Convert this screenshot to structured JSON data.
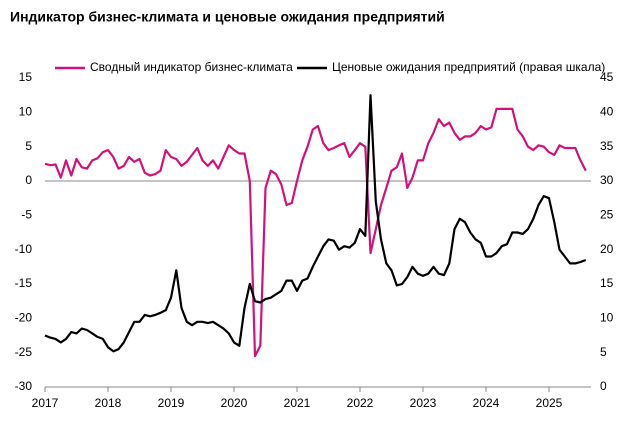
{
  "chart_data": {
    "type": "line",
    "title": "Индикатор бизнес-климата и ценовые ожидания предприятий",
    "categories": [
      "2017",
      null,
      null,
      null,
      null,
      null,
      null,
      null,
      null,
      null,
      null,
      null,
      "2018",
      null,
      null,
      null,
      null,
      null,
      null,
      null,
      null,
      null,
      null,
      null,
      "2019",
      null,
      null,
      null,
      null,
      null,
      null,
      null,
      null,
      null,
      null,
      null,
      "2020",
      null,
      null,
      null,
      null,
      null,
      null,
      null,
      null,
      null,
      null,
      null,
      "2021",
      null,
      null,
      null,
      null,
      null,
      null,
      null,
      null,
      null,
      null,
      null,
      "2022",
      null,
      null,
      null,
      null,
      null,
      null,
      null,
      null,
      null,
      null,
      null,
      "2023",
      null,
      null,
      null,
      null,
      null,
      null,
      null,
      null,
      null,
      null,
      null,
      "2024",
      null,
      null,
      null,
      null,
      null,
      null,
      null,
      null,
      null,
      null,
      null,
      "2025",
      null,
      null,
      null,
      null,
      null,
      null,
      null
    ],
    "series": [
      {
        "name": "Сводный индикатор бизнес-климата",
        "color": "#d1127a",
        "values": [
          2.5,
          2.3,
          2.4,
          0.5,
          3.0,
          0.8,
          3.2,
          2.0,
          1.8,
          3.0,
          3.3,
          4.2,
          4.5,
          3.5,
          1.8,
          2.2,
          3.5,
          2.8,
          3.2,
          1.2,
          0.8,
          1.0,
          1.5,
          4.5,
          3.5,
          3.2,
          2.2,
          2.8,
          3.8,
          4.8,
          3.0,
          2.2,
          3.0,
          1.8,
          3.5,
          5.2,
          4.5,
          4.0,
          4.0,
          0,
          -25.5,
          -24.0,
          -1,
          1.5,
          1.0,
          -0.5,
          -3.5,
          -3.2,
          0,
          3.0,
          5.0,
          7.5,
          8.0,
          5.5,
          4.5,
          4.8,
          5.2,
          5.5,
          3.5,
          4.5,
          5.5,
          5.0,
          -10.5,
          -7.0,
          -3.5,
          -1.0,
          1.5,
          2.0,
          4.0,
          -1.0,
          0.5,
          3.0,
          3.0,
          5.5,
          7.0,
          9.0,
          8.0,
          8.5,
          7.0,
          6.0,
          6.5,
          6.5,
          7.0,
          8.0,
          7.5,
          7.8,
          10.5,
          10.5,
          10.5,
          10.5,
          7.5,
          6.5,
          5.0,
          4.5,
          5.2,
          5.0,
          4.2,
          3.8,
          5.2,
          4.8,
          4.8,
          4.8,
          3.0,
          1.5
        ]
      },
      {
        "name": "Ценовые ожидания предприятий (правая шкала)",
        "color": "#000000",
        "axis": "y2",
        "values": [
          7.5,
          7.2,
          7.0,
          6.5,
          7.0,
          8.0,
          7.8,
          8.5,
          8.3,
          7.8,
          7.3,
          7.0,
          5.8,
          5.2,
          5.5,
          6.5,
          8.0,
          9.5,
          9.5,
          10.5,
          10.3,
          10.5,
          10.8,
          11.2,
          13.0,
          17.0,
          11.5,
          9.5,
          9.0,
          9.5,
          9.5,
          9.3,
          9.5,
          9.0,
          8.5,
          7.8,
          6.5,
          6.0,
          11.5,
          15.0,
          12.5,
          12.3,
          12.8,
          13.0,
          13.5,
          14.0,
          15.5,
          15.5,
          14.0,
          15.5,
          15.8,
          17.5,
          19.0,
          20.5,
          21.5,
          21.3,
          20.0,
          20.5,
          20.3,
          21.0,
          23.0,
          22.0,
          42.5,
          27.0,
          21.5,
          18.0,
          17.0,
          14.8,
          15.0,
          16.0,
          17.5,
          16.5,
          16.2,
          16.5,
          17.5,
          16.5,
          16.3,
          18.0,
          23.0,
          24.5,
          24.0,
          22.5,
          21.5,
          21.0,
          19.0,
          19.0,
          19.5,
          20.5,
          20.8,
          22.5,
          22.5,
          22.3,
          23.0,
          24.5,
          26.5,
          27.8,
          27.5,
          24.0,
          20.0,
          19.0,
          18.0,
          18.0,
          18.2,
          18.5
        ]
      }
    ],
    "ylim": [
      -30,
      15
    ],
    "yticks": [
      -30,
      -25,
      -20,
      -15,
      -10,
      -5,
      0,
      5,
      10,
      15
    ],
    "y2lim": [
      0,
      45
    ],
    "y2ticks": [
      0,
      5,
      10,
      15,
      20,
      25,
      30,
      35,
      40,
      45
    ],
    "legend": "top"
  }
}
